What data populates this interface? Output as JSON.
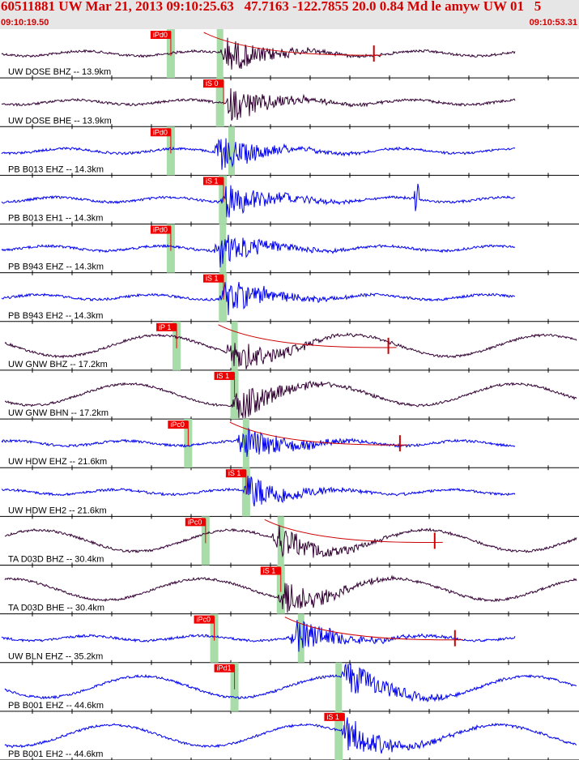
{
  "header": {
    "title": "60511881 UW Mar 21, 2013 09:10:25.63   47.7163 -122.7855 20.0 0.84 Md le amyw UW 01   5",
    "start_time": "09:10:19.50",
    "end_time": "09:10:53.31"
  },
  "colors": {
    "header_bg": "#e6e6e6",
    "header_text": "#d40000",
    "black_trace": "#330033",
    "blue_trace": "#0000ee",
    "pick_box": "#ee0000",
    "pick_window": "#a8dca8",
    "divider": "#000000"
  },
  "traces": [
    {
      "label": "UW DOSE BHZ -- 13.9km",
      "color": "black",
      "pick": "iPd0",
      "pick_t": 0.295,
      "win_t": 0.295,
      "second_t": 0.38,
      "burst_t": 0.39,
      "long_period": false,
      "drift": true
    },
    {
      "label": "UW DOSE BHE -- 13.9km",
      "color": "black",
      "pick": "iS 0",
      "pick_t": 0.386,
      "win_t": 0.38,
      "burst_t": 0.4,
      "long_period": false
    },
    {
      "label": "PB B013 EHZ -- 14.3km",
      "color": "blue",
      "pick": "iPd0",
      "pick_t": 0.295,
      "win_t": 0.295,
      "second_t": 0.4,
      "burst_t": 0.38,
      "long_period": false
    },
    {
      "label": "PB B013 EH1 -- 14.3km",
      "color": "blue",
      "pick": "iS 1",
      "pick_t": 0.386,
      "win_t": 0.385,
      "burst_t": 0.39,
      "long_period": false,
      "spike_t": 0.72
    },
    {
      "label": "PB B943 EHZ -- 14.3km",
      "color": "blue",
      "pick": "iPd0",
      "pick_t": 0.295,
      "win_t": 0.295,
      "second_t": 0.385,
      "burst_t": 0.38,
      "long_period": false
    },
    {
      "label": "PB B943 EH2 -- 14.3km",
      "color": "blue",
      "pick": "iS 1",
      "pick_t": 0.386,
      "win_t": 0.385,
      "burst_t": 0.39,
      "long_period": false
    },
    {
      "label": "UW GNW BHZ -- 17.2km",
      "color": "black",
      "pick": "iP 1",
      "pick_t": 0.305,
      "win_t": 0.305,
      "second_t": 0.405,
      "burst_t": 0.4,
      "long_period": true,
      "drift": true
    },
    {
      "label": "UW GNW BHN -- 17.2km",
      "color": "black",
      "pick": "iS 1",
      "pick_t": 0.405,
      "win_t": 0.405,
      "burst_t": 0.41,
      "long_period": true
    },
    {
      "label": "UW HDW EHZ -- 21.6km",
      "color": "blue",
      "pick": "iPc0",
      "pick_t": 0.325,
      "win_t": 0.325,
      "second_t": 0.425,
      "burst_t": 0.42,
      "long_period": false,
      "drift": true
    },
    {
      "label": "UW HDW EH2 -- 21.6km",
      "color": "blue",
      "pick": "iS 1",
      "pick_t": 0.425,
      "win_t": 0.425,
      "burst_t": 0.43,
      "long_period": false
    },
    {
      "label": "TA D03D BHZ -- 30.4km",
      "color": "black",
      "pick": "iPc0",
      "pick_t": 0.355,
      "win_t": 0.355,
      "second_t": 0.485,
      "burst_t": 0.48,
      "long_period": true,
      "drift": true
    },
    {
      "label": "TA D03D BHE -- 30.4km",
      "color": "black",
      "pick": "iS 1",
      "pick_t": 0.485,
      "win_t": 0.485,
      "burst_t": 0.49,
      "long_period": true
    },
    {
      "label": "UW BLN EHZ -- 35.2km",
      "color": "blue",
      "pick": "iPc0",
      "pick_t": 0.37,
      "win_t": 0.37,
      "second_t": 0.52,
      "burst_t": 0.51,
      "long_period": false,
      "drift": true
    },
    {
      "label": "PB B001 EHZ -- 44.6km",
      "color": "blue",
      "pick": "iPd1",
      "pick_t": 0.405,
      "win_t": 0.405,
      "second_t": 0.585,
      "burst_t": 0.6,
      "long_period": true
    },
    {
      "label": "PB B001 EH2 -- 44.6km",
      "color": "blue",
      "pick": "iS 1",
      "pick_t": 0.595,
      "win_t": 0.585,
      "burst_t": 0.6,
      "long_period": true
    }
  ]
}
